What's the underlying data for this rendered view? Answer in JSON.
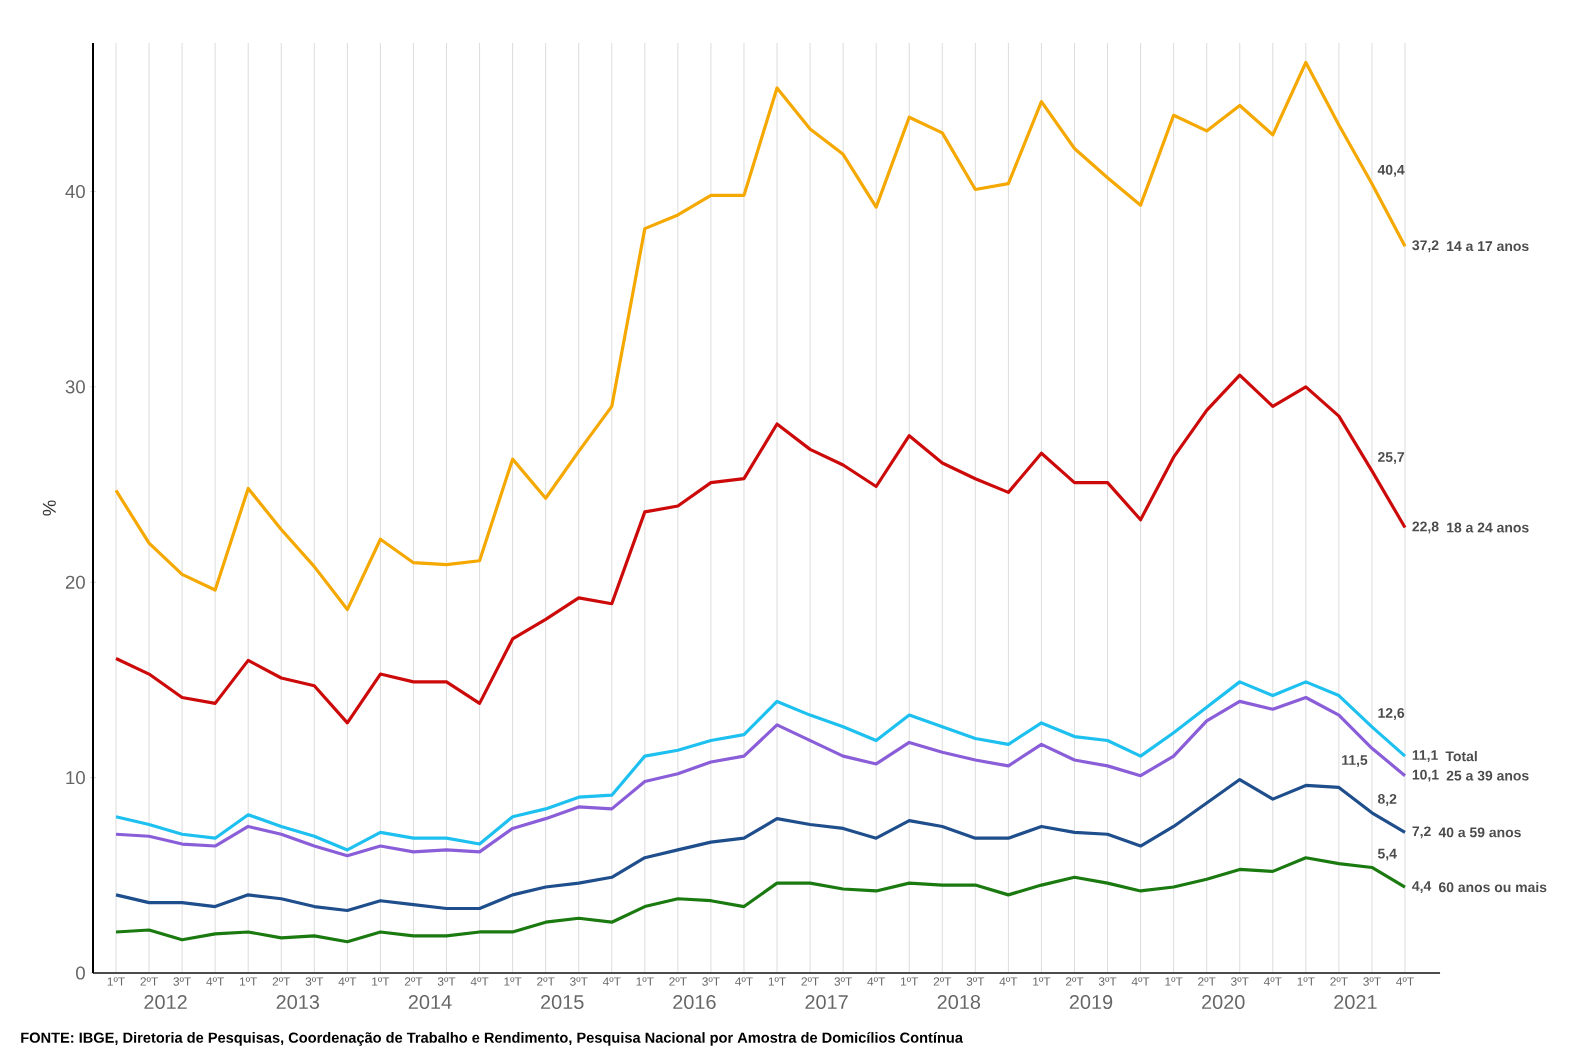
{
  "chart_data": {
    "type": "line",
    "ylabel": "%",
    "categories": [
      "1ºT",
      "2ºT",
      "3ºT",
      "4ºT",
      "1ºT",
      "2ºT",
      "3ºT",
      "4ºT",
      "1ºT",
      "2ºT",
      "3ºT",
      "4ºT",
      "1ºT",
      "2ºT",
      "3ºT",
      "4ºT",
      "1ºT",
      "2ºT",
      "3ºT",
      "4ºT",
      "1ºT",
      "2ºT",
      "3ºT",
      "4ºT",
      "1ºT",
      "2ºT",
      "3ºT",
      "4ºT",
      "1ºT",
      "2ºT",
      "3ºT",
      "4ºT",
      "1ºT",
      "2ºT",
      "3ºT",
      "4ºT",
      "1ºT",
      "2ºT",
      "3ºT",
      "4ºT"
    ],
    "ylim": [
      0,
      47.6
    ],
    "yticks": [
      0,
      10,
      20,
      30,
      40
    ],
    "grid": "x",
    "marker": "none",
    "line_style": "solid",
    "series": [
      {
        "name": "14 a 17 anos",
        "color": "#f5a800",
        "values": [
          24.7,
          22.0,
          20.4,
          19.6,
          24.8,
          22.7,
          20.8,
          18.6,
          22.2,
          21.0,
          20.9,
          21.1,
          26.3,
          24.3,
          26.7,
          29.0,
          38.1,
          38.8,
          39.8,
          39.8,
          45.3,
          43.2,
          41.9,
          39.2,
          43.8,
          43.0,
          40.1,
          40.4,
          44.6,
          42.2,
          40.7,
          39.3,
          43.9,
          43.1,
          44.4,
          42.9,
          46.6,
          43.4,
          40.4,
          37.2
        ],
        "value_labels": [
          null,
          null,
          null,
          null,
          null,
          null,
          null,
          null,
          null,
          null,
          null,
          null,
          null,
          null,
          null,
          null,
          null,
          null,
          null,
          null,
          null,
          null,
          null,
          null,
          null,
          null,
          null,
          null,
          null,
          null,
          null,
          null,
          null,
          null,
          null,
          null,
          null,
          null,
          "40,4",
          "37,2"
        ]
      },
      {
        "name": "18 a 24 anos",
        "color": "#cc0a0a",
        "values": [
          16.1,
          15.3,
          14.1,
          13.8,
          16.0,
          15.1,
          14.7,
          12.8,
          15.3,
          14.9,
          14.9,
          13.8,
          17.1,
          18.1,
          19.2,
          18.9,
          23.6,
          23.9,
          25.1,
          25.3,
          28.1,
          26.8,
          26.0,
          24.9,
          27.5,
          26.1,
          25.3,
          24.6,
          26.6,
          25.1,
          25.1,
          23.2,
          26.4,
          28.8,
          30.6,
          29.0,
          30.0,
          28.5,
          25.7,
          22.8
        ],
        "value_labels": [
          null,
          null,
          null,
          null,
          null,
          null,
          null,
          null,
          null,
          null,
          null,
          null,
          null,
          null,
          null,
          null,
          null,
          null,
          null,
          null,
          null,
          null,
          null,
          null,
          null,
          null,
          null,
          null,
          null,
          null,
          null,
          null,
          null,
          null,
          null,
          null,
          null,
          null,
          "25,7",
          "22,8"
        ]
      },
      {
        "name": "Total",
        "color": "#1ec0f0",
        "values": [
          8.0,
          7.6,
          7.1,
          6.9,
          8.1,
          7.5,
          7.0,
          6.3,
          7.2,
          6.9,
          6.9,
          6.6,
          8.0,
          8.4,
          9.0,
          9.1,
          11.1,
          11.4,
          11.9,
          12.2,
          13.9,
          13.2,
          12.6,
          11.9,
          13.2,
          12.6,
          12.0,
          11.7,
          12.8,
          12.1,
          11.9,
          11.1,
          12.3,
          13.6,
          14.9,
          14.2,
          14.9,
          14.2,
          12.6,
          11.1
        ],
        "value_labels": [
          null,
          null,
          null,
          null,
          null,
          null,
          null,
          null,
          null,
          null,
          null,
          null,
          null,
          null,
          null,
          null,
          null,
          null,
          null,
          null,
          null,
          null,
          null,
          null,
          null,
          null,
          null,
          null,
          null,
          null,
          null,
          null,
          null,
          null,
          null,
          null,
          null,
          null,
          "12,6",
          "11,1"
        ]
      },
      {
        "name": "25 a 39 anos",
        "color": "#8a5ed8",
        "values": [
          7.1,
          7.0,
          6.6,
          6.5,
          7.5,
          7.1,
          6.5,
          6.0,
          6.5,
          6.2,
          6.3,
          6.2,
          7.4,
          7.9,
          8.5,
          8.4,
          9.8,
          10.2,
          10.8,
          11.1,
          12.7,
          11.9,
          11.1,
          10.7,
          11.8,
          11.3,
          10.9,
          10.6,
          11.7,
          10.9,
          10.6,
          10.1,
          11.1,
          12.9,
          13.9,
          13.5,
          14.1,
          13.2,
          11.5,
          10.1
        ],
        "value_labels": [
          null,
          null,
          null,
          null,
          null,
          null,
          null,
          null,
          null,
          null,
          null,
          null,
          null,
          null,
          null,
          null,
          null,
          null,
          null,
          null,
          null,
          null,
          null,
          null,
          null,
          null,
          null,
          null,
          null,
          null,
          null,
          null,
          null,
          null,
          null,
          null,
          null,
          null,
          "11,5",
          "10,1"
        ]
      },
      {
        "name": "40 a 59 anos",
        "color": "#1f4e8c",
        "values": [
          4.0,
          3.6,
          3.6,
          3.4,
          4.0,
          3.8,
          3.4,
          3.2,
          3.7,
          3.5,
          3.3,
          3.3,
          4.0,
          4.4,
          4.6,
          4.9,
          5.9,
          6.3,
          6.7,
          6.9,
          7.9,
          7.6,
          7.4,
          6.9,
          7.8,
          7.5,
          6.9,
          6.9,
          7.5,
          7.2,
          7.1,
          6.5,
          7.5,
          8.7,
          9.9,
          8.9,
          9.6,
          9.5,
          8.2,
          7.2
        ],
        "value_labels": [
          null,
          null,
          null,
          null,
          null,
          null,
          null,
          null,
          null,
          null,
          null,
          null,
          null,
          null,
          null,
          null,
          null,
          null,
          null,
          null,
          null,
          null,
          null,
          null,
          null,
          null,
          null,
          null,
          null,
          null,
          null,
          null,
          null,
          null,
          null,
          null,
          null,
          null,
          "8,2",
          "7,2"
        ]
      },
      {
        "name": "60 anos ou mais",
        "color": "#1a7a10",
        "values": [
          2.1,
          2.2,
          1.7,
          2.0,
          2.1,
          1.8,
          1.9,
          1.6,
          2.1,
          1.9,
          1.9,
          2.1,
          2.1,
          2.6,
          2.8,
          2.6,
          3.4,
          3.8,
          3.7,
          3.4,
          4.6,
          4.6,
          4.3,
          4.2,
          4.6,
          4.5,
          4.5,
          4.0,
          4.5,
          4.9,
          4.6,
          4.2,
          4.4,
          4.8,
          5.3,
          5.2,
          5.9,
          5.6,
          5.4,
          4.4
        ],
        "value_labels": [
          null,
          null,
          null,
          null,
          null,
          null,
          null,
          null,
          null,
          null,
          null,
          null,
          null,
          null,
          null,
          null,
          null,
          null,
          null,
          null,
          null,
          null,
          null,
          null,
          null,
          null,
          null,
          null,
          null,
          null,
          null,
          null,
          null,
          null,
          null,
          null,
          null,
          null,
          "5,4",
          "4,4"
        ]
      }
    ],
    "annotations": [
      "2012",
      "2013",
      "2014",
      "2015",
      "2016",
      "2017",
      "2018",
      "2019",
      "2020",
      "2021",
      "FONTE: IBGE, Diretoria de Pesquisas, Coordenação de Trabalho e Rendimento, Pesquisa Nacional por Amostra de Domicílios Contínua"
    ]
  }
}
